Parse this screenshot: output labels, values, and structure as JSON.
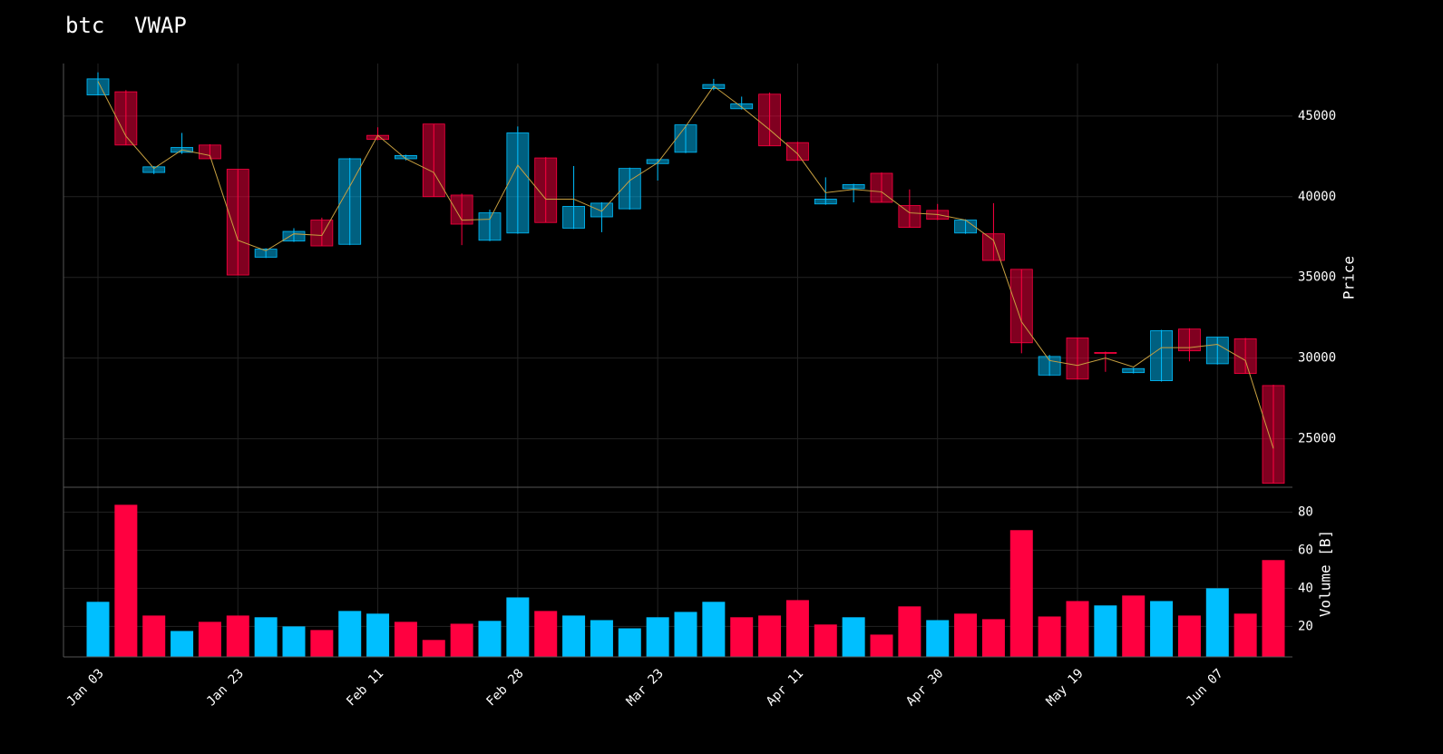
{
  "chart_data": [
    {
      "type": "candlestick",
      "title": "btc",
      "ylabel": "Price",
      "up_color": "#00bfff",
      "down_color": "#ff0040",
      "grid": true,
      "ylim": [
        22000,
        48250
      ],
      "yticks": [
        25000,
        30000,
        35000,
        40000,
        45000
      ],
      "open": [
        46300,
        46500,
        41500,
        42750,
        43200,
        41700,
        36250,
        37250,
        38550,
        37050,
        43800,
        42350,
        44500,
        40100,
        37300,
        37750,
        42400,
        38050,
        38750,
        39250,
        42050,
        42750,
        46700,
        45450,
        46350,
        43350,
        39550,
        40500,
        41450,
        39450,
        39150,
        37750,
        37700,
        35500,
        28950,
        31250,
        30350,
        29100,
        28600,
        31800,
        29650,
        31200,
        28300
      ],
      "high": [
        47700,
        46600,
        41900,
        43950,
        43250,
        41700,
        36800,
        38050,
        38700,
        42400,
        44300,
        42600,
        44500,
        40200,
        39200,
        44350,
        42450,
        41900,
        39650,
        41800,
        42350,
        44450,
        47300,
        46200,
        46450,
        43400,
        41200,
        40800,
        41500,
        40450,
        39550,
        38600,
        39600,
        35500,
        30200,
        31250,
        30400,
        29400,
        31750,
        31850,
        31300,
        31250,
        28350
      ],
      "low": [
        46300,
        43200,
        41400,
        42650,
        42350,
        35150,
        36200,
        37200,
        36950,
        37000,
        43500,
        42250,
        40000,
        37000,
        37250,
        37700,
        38400,
        38000,
        37800,
        39200,
        41000,
        42700,
        46600,
        45400,
        43150,
        42250,
        39500,
        39650,
        39650,
        38100,
        38550,
        37700,
        36050,
        30300,
        28900,
        28700,
        29150,
        29050,
        28550,
        29800,
        29600,
        29050,
        22250
      ],
      "close": [
        47300,
        43200,
        41850,
        43050,
        42350,
        35150,
        36750,
        37850,
        36950,
        42350,
        43550,
        42550,
        40000,
        38300,
        39000,
        43950,
        38400,
        39400,
        39600,
        41750,
        42300,
        44450,
        46950,
        45750,
        43150,
        42250,
        39850,
        40750,
        39650,
        38100,
        38600,
        38550,
        36050,
        30950,
        30100,
        28700,
        30300,
        29350,
        31700,
        30450,
        31300,
        29050,
        22250
      ],
      "vwap": {
        "name": "VWAP",
        "color": "#c8a040",
        "values": [
          47150,
          43750,
          41750,
          42900,
          42550,
          37300,
          36650,
          37700,
          37600,
          40650,
          43800,
          42350,
          41500,
          38550,
          38600,
          41950,
          39850,
          39850,
          39100,
          41000,
          42100,
          44350,
          46850,
          45550,
          44150,
          42650,
          40250,
          40450,
          40300,
          39000,
          38900,
          38550,
          37300,
          32250,
          29850,
          29550,
          30000,
          29450,
          30650,
          30650,
          30850,
          29850,
          24400
        ]
      }
    },
    {
      "type": "bar",
      "ylabel": "Volume [B]",
      "grid": true,
      "ylim": [
        4,
        93
      ],
      "yticks": [
        20,
        40,
        60,
        80
      ],
      "categories": [
        "Jan 03",
        null,
        null,
        null,
        null,
        "Jan 23",
        null,
        null,
        null,
        null,
        "Feb 11",
        null,
        null,
        null,
        null,
        "Feb 28",
        null,
        null,
        null,
        null,
        "Mar 23",
        null,
        null,
        null,
        null,
        "Apr 11",
        null,
        null,
        null,
        null,
        "Apr 30",
        null,
        null,
        null,
        null,
        "May 19",
        null,
        null,
        null,
        null,
        "Jun 07",
        null,
        null
      ],
      "values": [
        32.9,
        83.8,
        25.7,
        17.6,
        22.4,
        25.7,
        24.8,
        20,
        18.1,
        28.1,
        26.7,
        22.4,
        12.9,
        21.4,
        22.9,
        35.2,
        28.1,
        25.7,
        23.3,
        19,
        24.8,
        27.6,
        32.9,
        24.8,
        25.7,
        33.8,
        21,
        24.8,
        15.7,
        30.5,
        23.3,
        26.7,
        23.8,
        70.5,
        25.2,
        33.3,
        31,
        36.2,
        33.3,
        25.7,
        40,
        26.7,
        54.8
      ],
      "colors": [
        "#00bfff",
        "#ff0040",
        "#ff0040",
        "#00bfff",
        "#ff0040",
        "#ff0040",
        "#00bfff",
        "#00bfff",
        "#ff0040",
        "#00bfff",
        "#00bfff",
        "#ff0040",
        "#ff0040",
        "#ff0040",
        "#00bfff",
        "#00bfff",
        "#ff0040",
        "#00bfff",
        "#00bfff",
        "#00bfff",
        "#00bfff",
        "#00bfff",
        "#00bfff",
        "#ff0040",
        "#ff0040",
        "#ff0040",
        "#ff0040",
        "#00bfff",
        "#ff0040",
        "#ff0040",
        "#00bfff",
        "#ff0040",
        "#ff0040",
        "#ff0040",
        "#ff0040",
        "#ff0040",
        "#00bfff",
        "#ff0040",
        "#00bfff",
        "#ff0040",
        "#00bfff",
        "#ff0040",
        "#ff0040"
      ]
    }
  ]
}
